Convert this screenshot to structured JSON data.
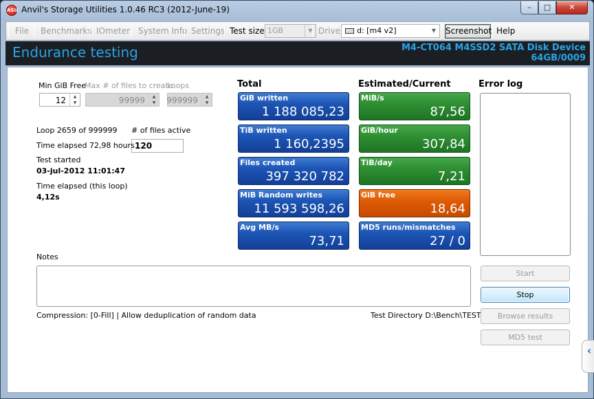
{
  "window": {
    "title": "Anvil's Storage Utilities 1.0.46 RC3 (2012-June-19)",
    "minimize": "–",
    "maximize": "□",
    "close": "✕",
    "app_icon_text": "ASU"
  },
  "menubar": {
    "file": "File",
    "benchmarks": "Benchmarks",
    "iometer": "IOmeter",
    "system_info": "System Info",
    "settings": "Settings",
    "test_size_label": "Test size",
    "test_size_value": "1GB",
    "drive_label": "Drive",
    "drive_value": "d: [m4 v2]",
    "screenshot": "Screenshot",
    "help": "Help"
  },
  "header": {
    "title": "Endurance testing",
    "device_name": "M4-CT064 M4SSD2 SATA Disk Device",
    "device_size": "64GB/0009"
  },
  "settings": {
    "min_gib_free_label": "Min GiB Free",
    "min_gib_free_value": "12",
    "max_files_label": "Max # of files to create",
    "max_files_value": "99999",
    "loops_label": "Loops",
    "loops_value": "999999"
  },
  "status": {
    "loop": "Loop 2659 of 999999",
    "files_active_label": "# of files active",
    "files_active_value": "120",
    "time_elapsed": "Time elapsed 72,98 hours",
    "test_started_label": "Test started",
    "test_started_value": "03-jul-2012 11:01:47",
    "loop_elapsed_label": "Time elapsed (this loop)",
    "loop_elapsed_value": "4,12s"
  },
  "totals": {
    "heading": "Total",
    "tiles": [
      {
        "label": "GiB written",
        "value": "1 188 085,23"
      },
      {
        "label": "TiB written",
        "value": "1 160,2395"
      },
      {
        "label": "Files created",
        "value": "397 320 782"
      },
      {
        "label": "MiB Random writes",
        "value": "11 593 598,26"
      },
      {
        "label": "Avg MB/s",
        "value": "73,71"
      }
    ]
  },
  "estimates": {
    "heading": "Estimated/Current",
    "tiles": [
      {
        "label": "MiB/s",
        "value": "87,56",
        "color": "#2f8f33"
      },
      {
        "label": "GiB/hour",
        "value": "307,84",
        "color": "#2f8f33"
      },
      {
        "label": "TiB/day",
        "value": "7,21",
        "color": "#2f8f33"
      },
      {
        "label": "GiB free",
        "value": "18,64",
        "color": "#de5c06"
      },
      {
        "label": "MD5 runs/mismatches",
        "value": "27 / 0",
        "color": "#1d55b5"
      }
    ]
  },
  "error_log": {
    "heading": "Error log"
  },
  "notes": {
    "label": "Notes"
  },
  "footer": {
    "compression": "Compression: [0-Fill] | Allow deduplication of random data",
    "test_directory": "Test Directory D:\\Bench\\TEST"
  },
  "actions": {
    "start": "Start",
    "stop": "Stop",
    "browse": "Browse results",
    "md5": "MD5 test"
  },
  "side_tab": {
    "glyph": "‹"
  }
}
